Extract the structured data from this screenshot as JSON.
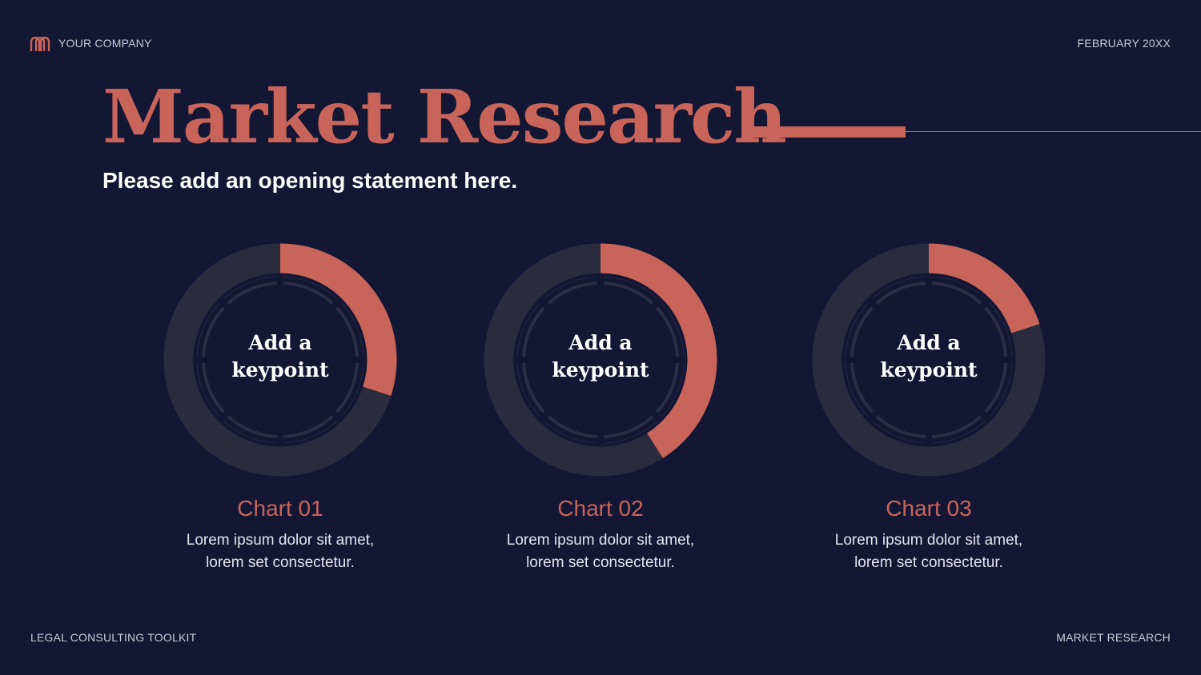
{
  "header": {
    "company": "YOUR COMPANY",
    "date": "FEBRUARY 20XX",
    "logo_icon": "mm-logo-icon"
  },
  "title": "Market Research",
  "subtitle": "Please add an opening statement here.",
  "footer": {
    "left": "LEGAL CONSULTING TOOLKIT",
    "right": "MARKET RESEARCH"
  },
  "colors": {
    "background": "#131733",
    "accent": "#c9645a",
    "track": "#2a2b3d"
  },
  "chart_data": [
    {
      "type": "pie",
      "variant": "donut",
      "center_label": [
        "Add a",
        "keypoint"
      ],
      "values": [
        30,
        70
      ],
      "title": "Chart 01",
      "description": [
        "Lorem ipsum dolor sit amet,",
        "lorem set consectetur."
      ]
    },
    {
      "type": "pie",
      "variant": "donut",
      "center_label": [
        "Add a",
        "keypoint"
      ],
      "values": [
        41,
        59
      ],
      "title": "Chart 02",
      "description": [
        "Lorem ipsum dolor sit amet,",
        "lorem set consectetur."
      ]
    },
    {
      "type": "pie",
      "variant": "donut",
      "center_label": [
        "Add a",
        "keypoint"
      ],
      "values": [
        20,
        80
      ],
      "title": "Chart 03",
      "description": [
        "Lorem ipsum dolor sit amet,",
        "lorem set consectetur."
      ]
    }
  ]
}
